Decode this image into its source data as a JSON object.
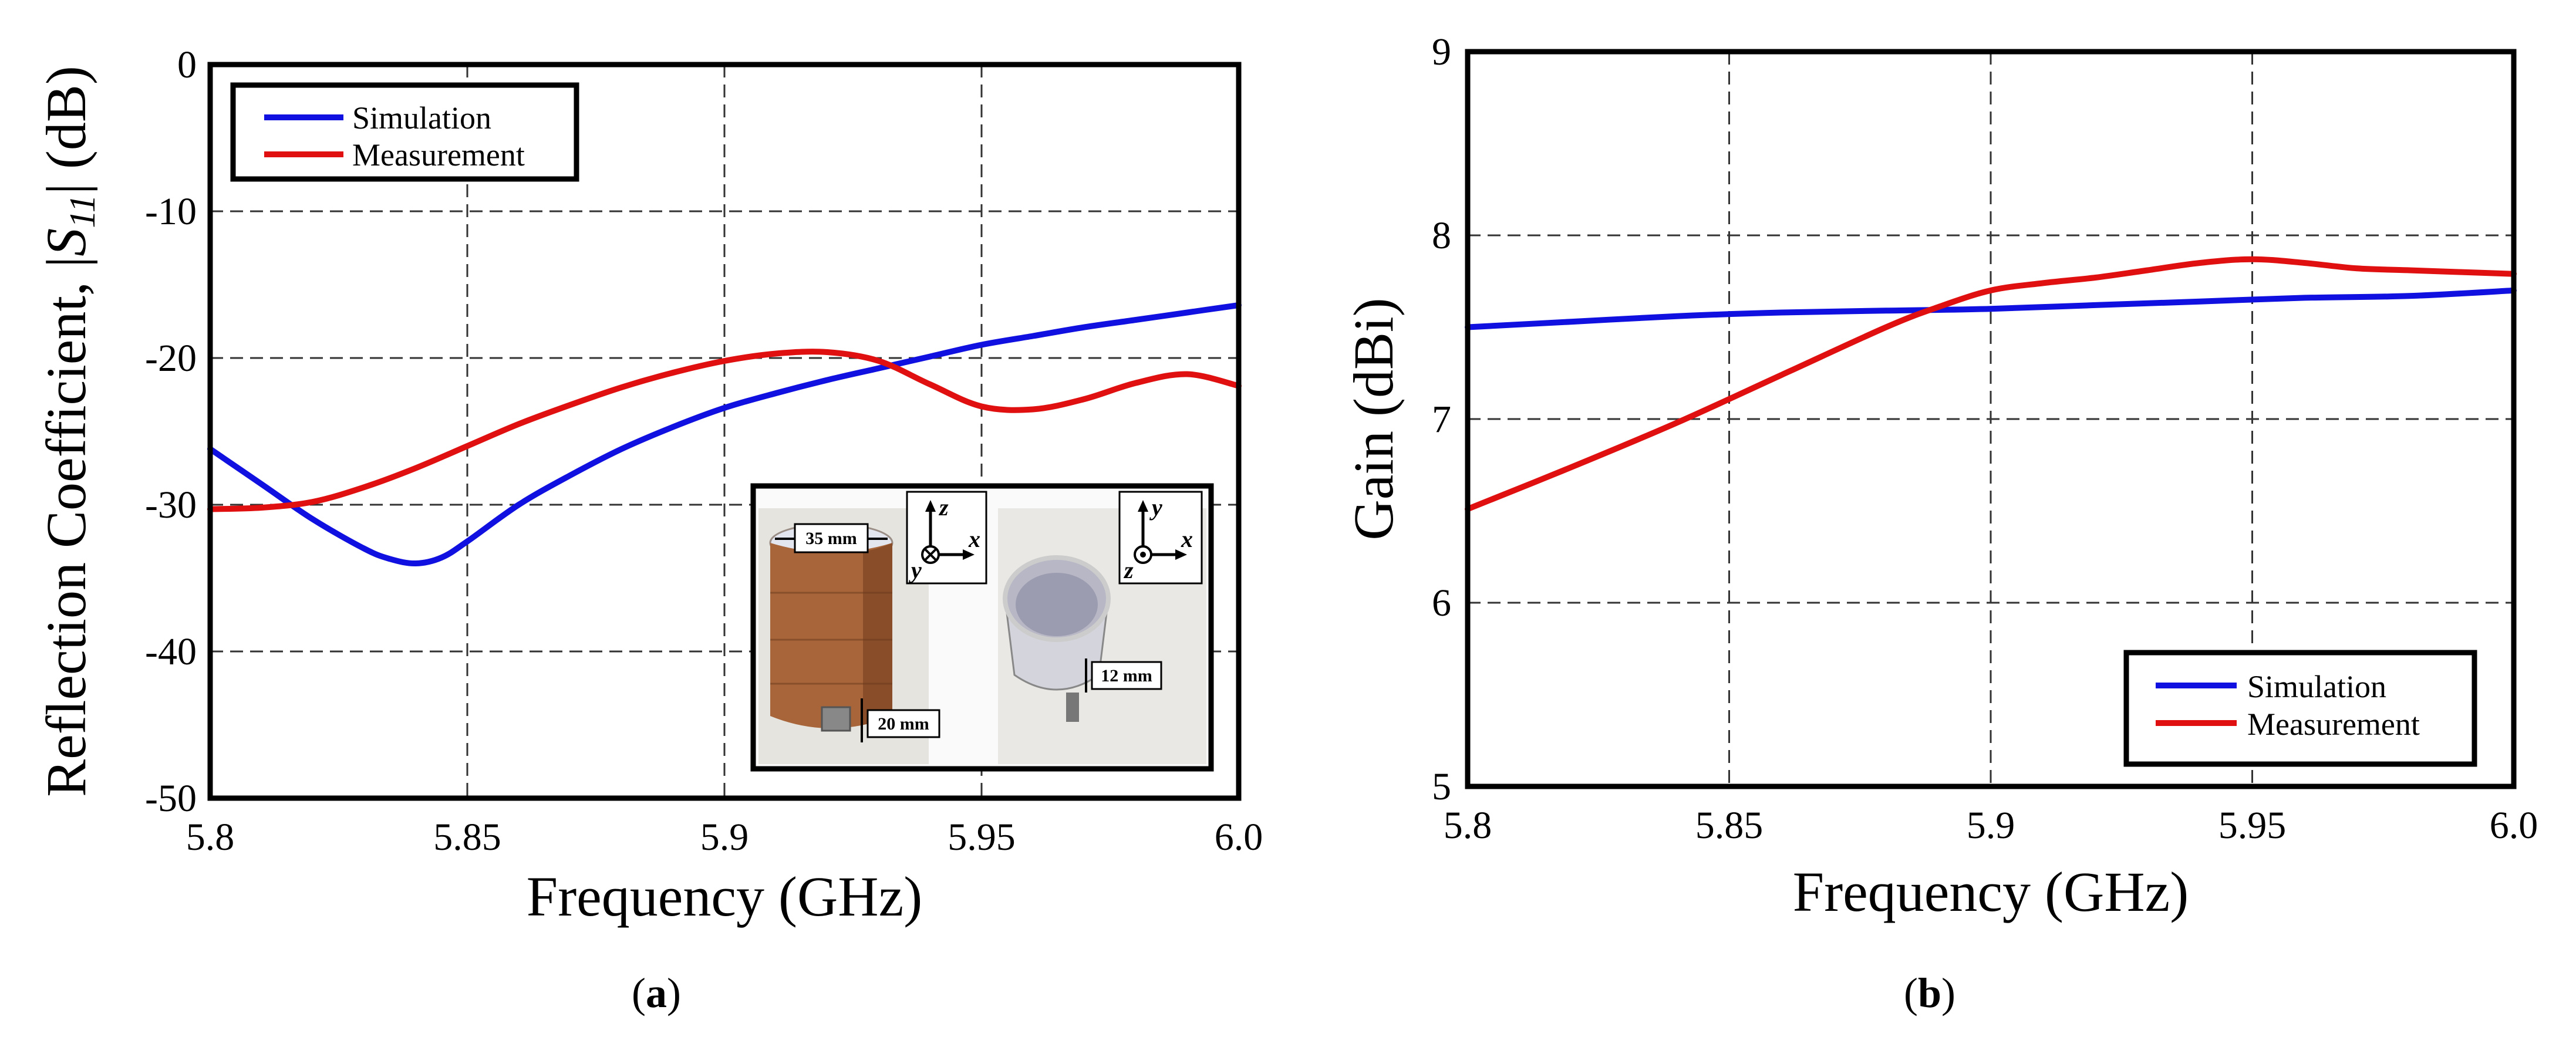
{
  "colors": {
    "simulation": "#1010e0",
    "measurement": "#e01010",
    "grid": "#333333"
  },
  "chart_data": [
    {
      "id": "a",
      "type": "line",
      "caption_open": "(",
      "caption": "a",
      "caption_close": ")",
      "xlabel": "Frequency (GHz)",
      "ylabel_prefix": "Reflection Coefficient, |",
      "ylabel_sym": "S",
      "ylabel_sub": "11",
      "ylabel_suffix": "| (dB)",
      "xlim": [
        5.8,
        6.0
      ],
      "ylim": [
        -50,
        0
      ],
      "xticks": [
        5.8,
        5.85,
        5.9,
        5.95,
        6.0
      ],
      "xtick_labels": [
        "5.8",
        "5.85",
        "5.9",
        "5.95",
        "6.0"
      ],
      "yticks": [
        0,
        -10,
        -20,
        -30,
        -40,
        -50
      ],
      "ytick_labels": [
        "0",
        "-10",
        "-20",
        "-30",
        "-40",
        "-50"
      ],
      "legend_position": "top-left",
      "grid": true,
      "series": [
        {
          "name": "Simulation",
          "color": "#1010e0",
          "x": [
            5.8,
            5.81,
            5.82,
            5.83,
            5.835,
            5.84,
            5.845,
            5.85,
            5.86,
            5.87,
            5.88,
            5.89,
            5.9,
            5.91,
            5.92,
            5.93,
            5.94,
            5.95,
            5.96,
            5.97,
            5.98,
            5.99,
            6.0
          ],
          "y": [
            -26.2,
            -28.6,
            -31.0,
            -33.0,
            -33.7,
            -34.0,
            -33.6,
            -32.5,
            -30.0,
            -28.0,
            -26.2,
            -24.7,
            -23.4,
            -22.4,
            -21.5,
            -20.7,
            -19.9,
            -19.1,
            -18.5,
            -17.9,
            -17.4,
            -16.9,
            -16.4
          ]
        },
        {
          "name": "Measurement",
          "color": "#e01010",
          "x": [
            5.8,
            5.81,
            5.82,
            5.83,
            5.84,
            5.85,
            5.86,
            5.87,
            5.88,
            5.89,
            5.9,
            5.91,
            5.92,
            5.93,
            5.94,
            5.95,
            5.96,
            5.97,
            5.98,
            5.99,
            6.0
          ],
          "y": [
            -30.3,
            -30.2,
            -29.8,
            -28.8,
            -27.5,
            -26.0,
            -24.5,
            -23.2,
            -22.0,
            -21.0,
            -20.2,
            -19.7,
            -19.6,
            -20.2,
            -21.8,
            -23.3,
            -23.5,
            -22.8,
            -21.7,
            -21.1,
            -21.9
          ]
        }
      ],
      "inset": {
        "dim_diameter": "35 mm",
        "dim_height": "20 mm",
        "dim_depth": "12 mm",
        "axes_left": {
          "up": "z",
          "right": "x",
          "out": "y"
        },
        "axes_right": {
          "up": "y",
          "right": "x",
          "out": "z"
        }
      }
    },
    {
      "id": "b",
      "type": "line",
      "caption_open": "(",
      "caption": "b",
      "caption_close": ")",
      "xlabel": "Frequency (GHz)",
      "ylabel": "Gain (dBi)",
      "xlim": [
        5.8,
        6.0
      ],
      "ylim": [
        5,
        9
      ],
      "xticks": [
        5.8,
        5.85,
        5.9,
        5.95,
        6.0
      ],
      "xtick_labels": [
        "5.8",
        "5.85",
        "5.9",
        "5.95",
        "6.0"
      ],
      "yticks": [
        9,
        8,
        7,
        6,
        5
      ],
      "ytick_labels": [
        "9",
        "8",
        "7",
        "6",
        "5"
      ],
      "legend_position": "bottom-right",
      "grid": true,
      "series": [
        {
          "name": "Simulation",
          "color": "#1010e0",
          "x": [
            5.8,
            5.82,
            5.84,
            5.86,
            5.88,
            5.9,
            5.92,
            5.94,
            5.96,
            5.98,
            6.0
          ],
          "y": [
            7.5,
            7.53,
            7.56,
            7.58,
            7.59,
            7.6,
            7.62,
            7.64,
            7.66,
            7.67,
            7.7
          ]
        },
        {
          "name": "Measurement",
          "color": "#e01010",
          "x": [
            5.8,
            5.82,
            5.84,
            5.86,
            5.88,
            5.89,
            5.9,
            5.91,
            5.92,
            5.93,
            5.94,
            5.95,
            5.96,
            5.97,
            5.98,
            5.99,
            6.0
          ],
          "y": [
            6.51,
            6.74,
            6.98,
            7.24,
            7.5,
            7.61,
            7.7,
            7.74,
            7.77,
            7.81,
            7.85,
            7.87,
            7.85,
            7.82,
            7.81,
            7.8,
            7.79
          ]
        }
      ]
    }
  ]
}
